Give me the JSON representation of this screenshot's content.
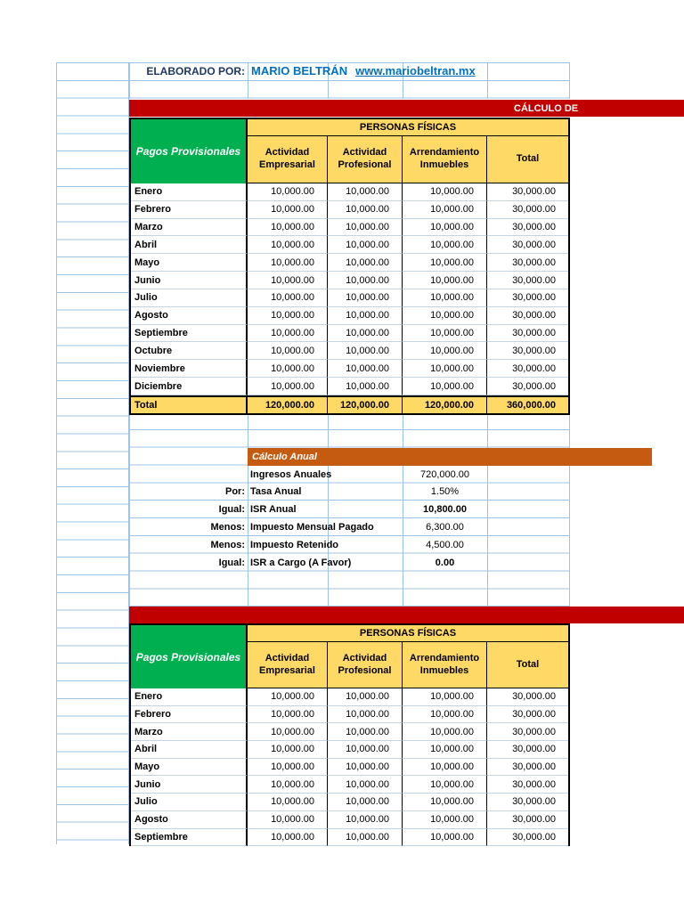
{
  "header": {
    "label": "ELABORADO POR:",
    "name": "MARIO BELTRÁN",
    "url": "www.mariobeltran.mx"
  },
  "banners": {
    "top": "CÁLCULO DE",
    "bottom": ""
  },
  "colors": {
    "banner_red": "#C00000",
    "header_green": "#00B050",
    "header_yellow": "#FFD966",
    "banner_orange": "#C55A11",
    "link_blue": "#0070C0"
  },
  "table1": {
    "corner": "Pagos Provisionales",
    "group_header": "PERSONAS FÍSICAS",
    "columns": [
      "Actividad Empresarial",
      "Actividad Profesional",
      "Arrendamiento Inmuebles",
      "Total"
    ],
    "rows": [
      {
        "label": "Enero",
        "values": [
          "10,000.00",
          "10,000.00",
          "10,000.00",
          "30,000.00"
        ]
      },
      {
        "label": "Febrero",
        "values": [
          "10,000.00",
          "10,000.00",
          "10,000.00",
          "30,000.00"
        ]
      },
      {
        "label": "Marzo",
        "values": [
          "10,000.00",
          "10,000.00",
          "10,000.00",
          "30,000.00"
        ]
      },
      {
        "label": "Abril",
        "values": [
          "10,000.00",
          "10,000.00",
          "10,000.00",
          "30,000.00"
        ]
      },
      {
        "label": "Mayo",
        "values": [
          "10,000.00",
          "10,000.00",
          "10,000.00",
          "30,000.00"
        ]
      },
      {
        "label": "Junio",
        "values": [
          "10,000.00",
          "10,000.00",
          "10,000.00",
          "30,000.00"
        ]
      },
      {
        "label": "Julio",
        "values": [
          "10,000.00",
          "10,000.00",
          "10,000.00",
          "30,000.00"
        ]
      },
      {
        "label": "Agosto",
        "values": [
          "10,000.00",
          "10,000.00",
          "10,000.00",
          "30,000.00"
        ]
      },
      {
        "label": "Septiembre",
        "values": [
          "10,000.00",
          "10,000.00",
          "10,000.00",
          "30,000.00"
        ]
      },
      {
        "label": "Octubre",
        "values": [
          "10,000.00",
          "10,000.00",
          "10,000.00",
          "30,000.00"
        ]
      },
      {
        "label": "Noviembre",
        "values": [
          "10,000.00",
          "10,000.00",
          "10,000.00",
          "30,000.00"
        ]
      },
      {
        "label": "Diciembre",
        "values": [
          "10,000.00",
          "10,000.00",
          "10,000.00",
          "30,000.00"
        ]
      }
    ],
    "total": {
      "label": "Total",
      "values": [
        "120,000.00",
        "120,000.00",
        "120,000.00",
        "360,000.00"
      ]
    }
  },
  "annual": {
    "title": "Cálculo Anual",
    "rows": [
      {
        "prefix": "",
        "label": "Ingresos Anuales",
        "value": "720,000.00",
        "bold": false
      },
      {
        "prefix": "Por:",
        "label": "Tasa Anual",
        "value": "1.50%",
        "bold": false
      },
      {
        "prefix": "Igual:",
        "label": "ISR Anual",
        "value": "10,800.00",
        "bold": true
      },
      {
        "prefix": "Menos:",
        "label": "Impuesto Mensual Pagado",
        "value": "6,300.00",
        "bold": false
      },
      {
        "prefix": "Menos:",
        "label": "Impuesto Retenido",
        "value": "4,500.00",
        "bold": false
      },
      {
        "prefix": "Igual:",
        "label": "ISR a Cargo (A Favor)",
        "value": "0.00",
        "bold": true
      }
    ]
  },
  "table2": {
    "corner": "Pagos Provisionales",
    "group_header": "PERSONAS FÍSICAS",
    "columns": [
      "Actividad Empresarial",
      "Actividad Profesional",
      "Arrendamiento Inmuebles",
      "Total"
    ],
    "rows": [
      {
        "label": "Enero",
        "values": [
          "10,000.00",
          "10,000.00",
          "10,000.00",
          "30,000.00"
        ]
      },
      {
        "label": "Febrero",
        "values": [
          "10,000.00",
          "10,000.00",
          "10,000.00",
          "30,000.00"
        ]
      },
      {
        "label": "Marzo",
        "values": [
          "10,000.00",
          "10,000.00",
          "10,000.00",
          "30,000.00"
        ]
      },
      {
        "label": "Abril",
        "values": [
          "10,000.00",
          "10,000.00",
          "10,000.00",
          "30,000.00"
        ]
      },
      {
        "label": "Mayo",
        "values": [
          "10,000.00",
          "10,000.00",
          "10,000.00",
          "30,000.00"
        ]
      },
      {
        "label": "Junio",
        "values": [
          "10,000.00",
          "10,000.00",
          "10,000.00",
          "30,000.00"
        ]
      },
      {
        "label": "Julio",
        "values": [
          "10,000.00",
          "10,000.00",
          "10,000.00",
          "30,000.00"
        ]
      },
      {
        "label": "Agosto",
        "values": [
          "10,000.00",
          "10,000.00",
          "10,000.00",
          "30,000.00"
        ]
      },
      {
        "label": "Septiembre",
        "values": [
          "10,000.00",
          "10,000.00",
          "10,000.00",
          "30,000.00"
        ]
      }
    ]
  }
}
